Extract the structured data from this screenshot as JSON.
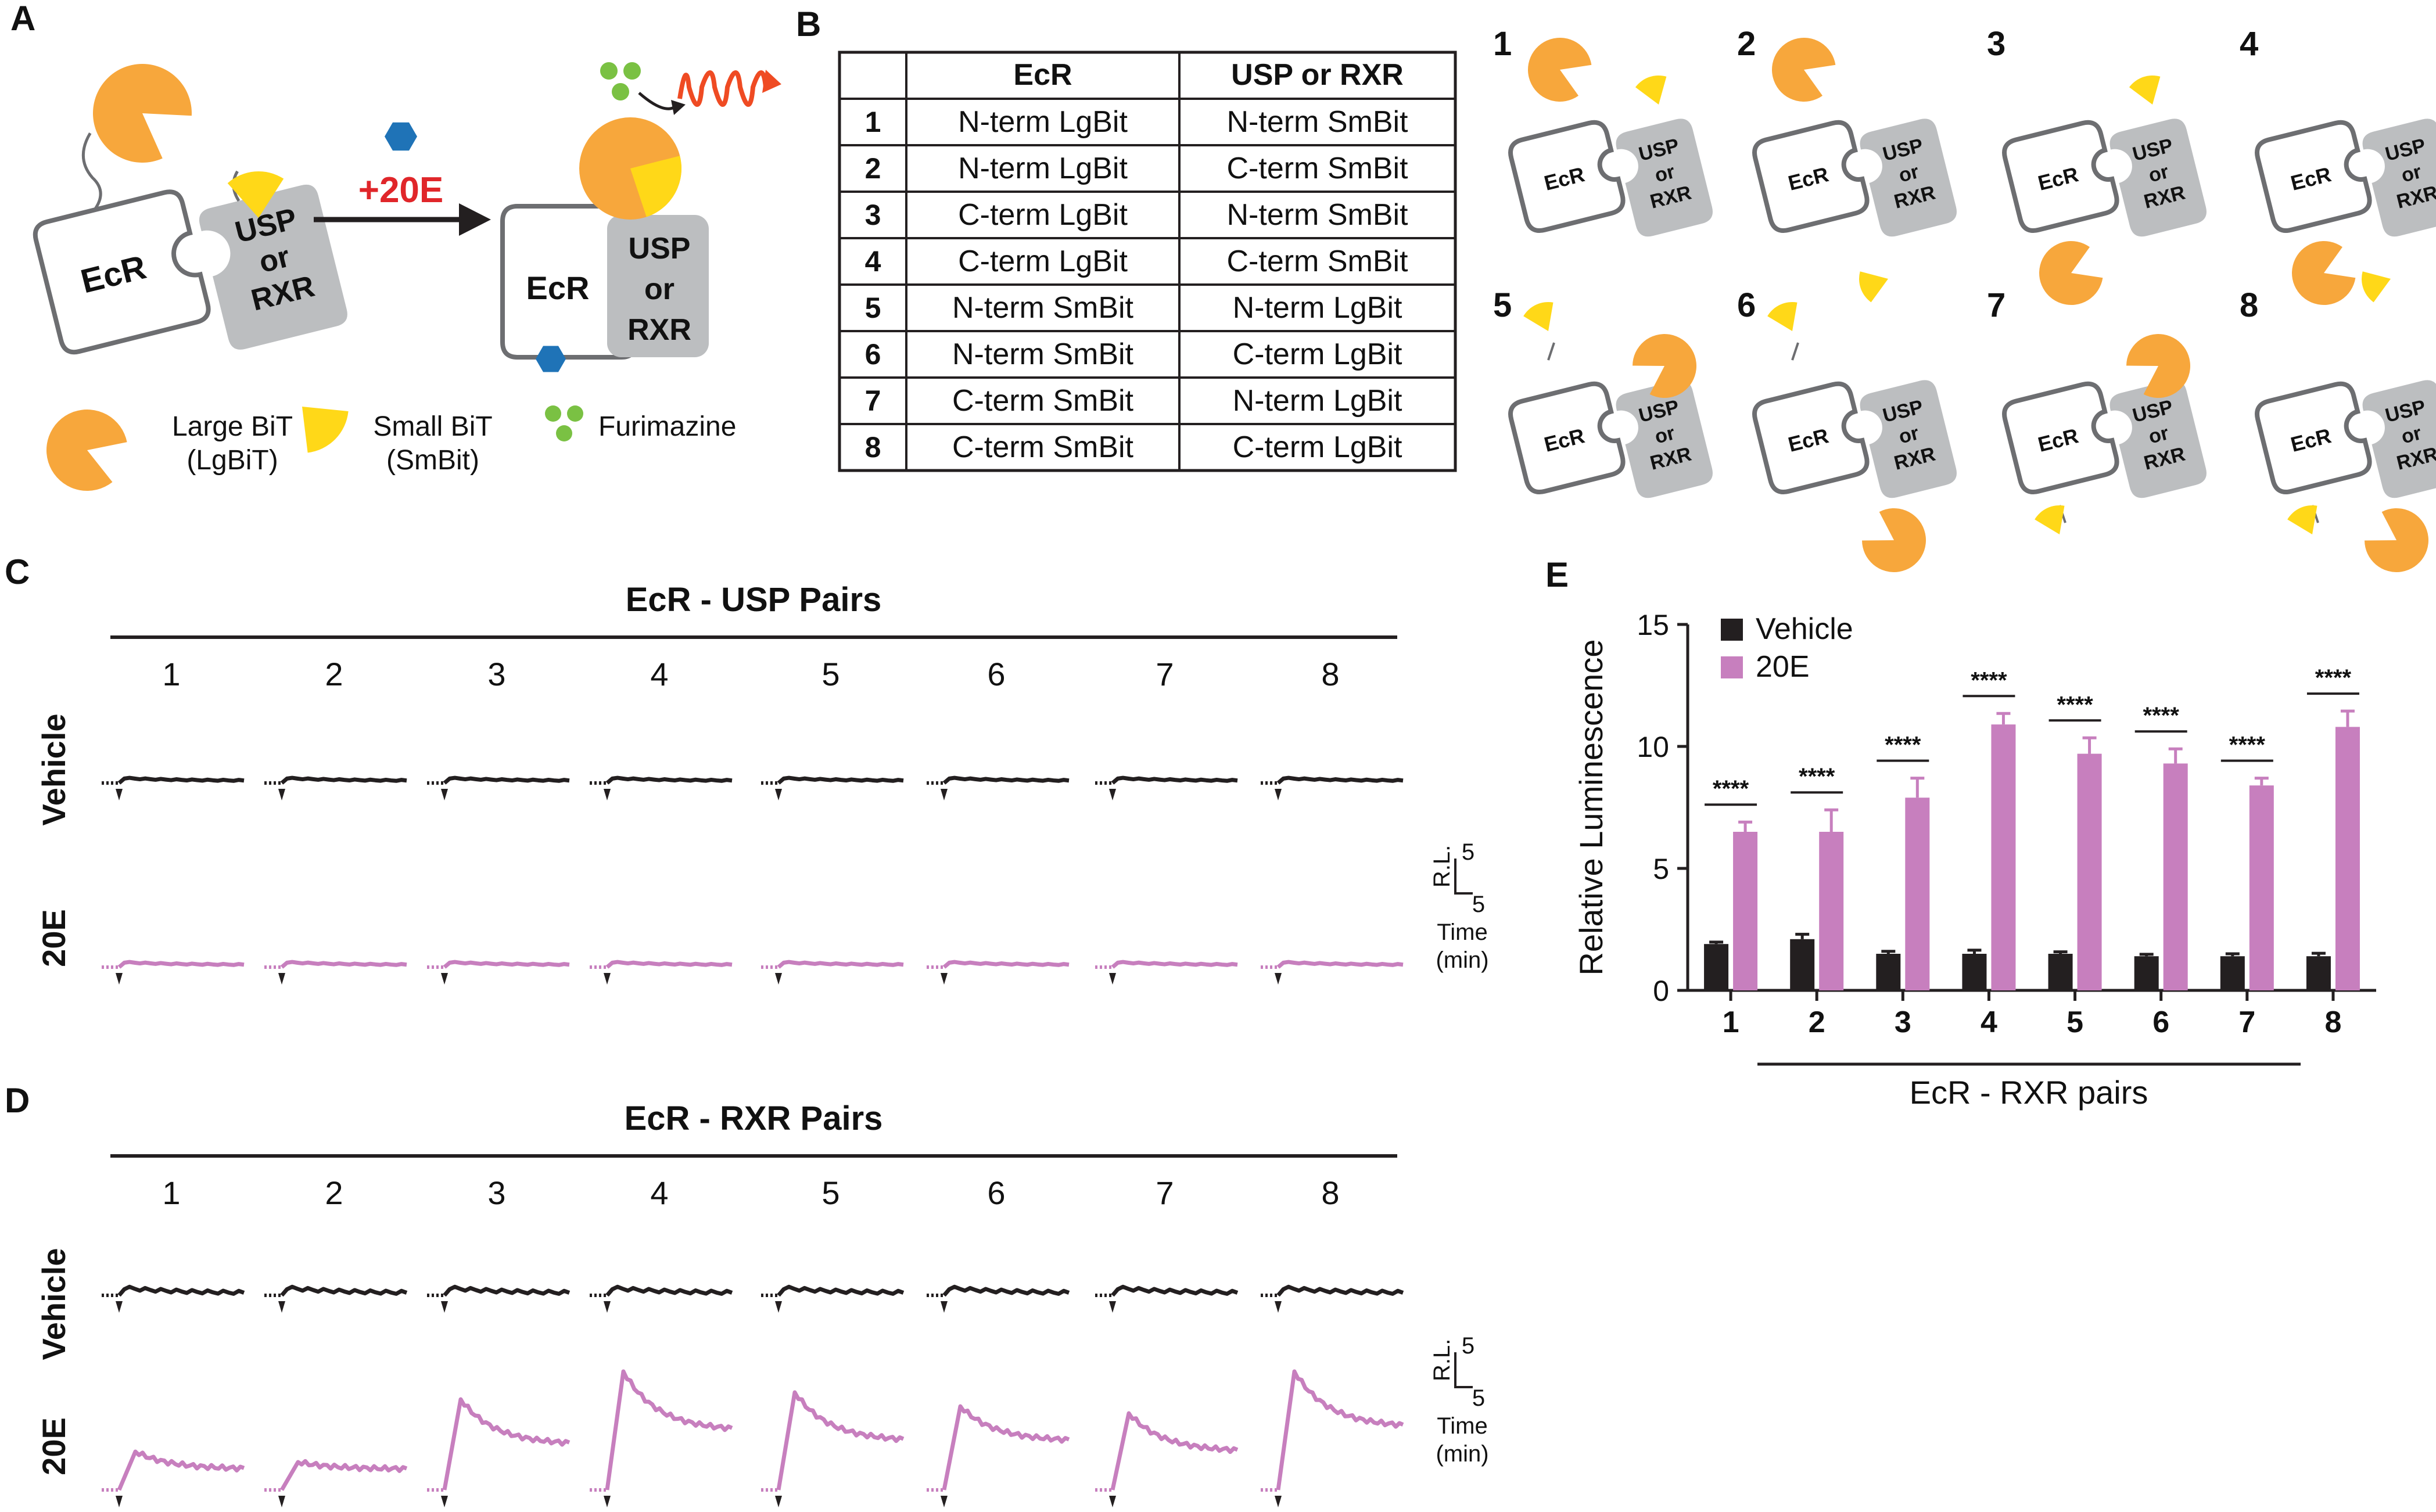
{
  "panels": {
    "A": "A",
    "B": "B",
    "C": "C",
    "D": "D",
    "E": "E"
  },
  "schematic": {
    "ecr": "EcR",
    "partner_line1": "USP",
    "partner_line2": "or",
    "partner_line3": "RXR",
    "ligand": "+20E",
    "legend": {
      "large_line1": "Large BiT",
      "large_line2": "(LgBiT)",
      "small_line1": "Small BiT",
      "small_line2": "(SmBit)",
      "furimazine": "Furimazine"
    }
  },
  "table": {
    "headers": [
      "",
      "EcR",
      "USP or RXR"
    ],
    "rows": [
      {
        "id": "1",
        "ecr": "N-term LgBit",
        "partner": "N-term SmBit"
      },
      {
        "id": "2",
        "ecr": "N-term LgBit",
        "partner": "C-term SmBit"
      },
      {
        "id": "3",
        "ecr": "C-term LgBit",
        "partner": "N-term SmBit"
      },
      {
        "id": "4",
        "ecr": "C-term LgBit",
        "partner": "C-term SmBit"
      },
      {
        "id": "5",
        "ecr": "N-term SmBit",
        "partner": "N-term LgBit"
      },
      {
        "id": "6",
        "ecr": "N-term SmBit",
        "partner": "C-term LgBit"
      },
      {
        "id": "7",
        "ecr": "C-term SmBit",
        "partner": "N-term LgBit"
      },
      {
        "id": "8",
        "ecr": "C-term SmBit",
        "partner": "C-term LgBit"
      }
    ]
  },
  "constructs": {
    "numbers": [
      "1",
      "2",
      "3",
      "4",
      "5",
      "6",
      "7",
      "8"
    ],
    "ecr": "EcR",
    "p1": "USP",
    "p2": "or",
    "p3": "RXR"
  },
  "traces": {
    "usp_title": "EcR - USP Pairs",
    "rxr_title": "EcR - RXR Pairs",
    "row_vehicle": "Vehicle",
    "row_20e": "20E",
    "pair_numbers": [
      "1",
      "2",
      "3",
      "4",
      "5",
      "6",
      "7",
      "8"
    ],
    "scale": {
      "y_label": "R.L.",
      "y_value": "5",
      "x_value": "5",
      "time_line1": "Time",
      "time_line2": "(min)"
    },
    "rxr_20e_peak_heights": [
      1.1,
      0.8,
      2.6,
      3.4,
      2.8,
      2.4,
      2.2,
      3.4
    ],
    "rxr_20e_final_heights": [
      0.6,
      0.6,
      1.3,
      1.7,
      1.4,
      1.4,
      1.1,
      1.8
    ]
  },
  "colors": {
    "vehicle": "#231f20",
    "e20": "#c77fbe",
    "lgbit": "#f7a73c",
    "smbit": "#ffd818",
    "ligand": "#1f73b7",
    "furimazine": "#7ac143",
    "light": "#ef4b23",
    "protein_fill": "#ffffff",
    "partner_fill": "#bcbec0",
    "outline": "#6d6e71"
  },
  "chart_data": {
    "type": "bar",
    "title": "",
    "xlabel": "EcR - RXR pairs",
    "ylabel": "Relative Luminescence",
    "categories": [
      "1",
      "2",
      "3",
      "4",
      "5",
      "6",
      "7",
      "8"
    ],
    "ylim": [
      0,
      15
    ],
    "yticks": [
      "0",
      "5",
      "10",
      "15"
    ],
    "series": [
      {
        "name": "Vehicle",
        "values": [
          1.9,
          2.1,
          1.5,
          1.5,
          1.5,
          1.4,
          1.4,
          1.4
        ],
        "errors": [
          0.08,
          0.2,
          0.1,
          0.15,
          0.08,
          0.08,
          0.1,
          0.12
        ]
      },
      {
        "name": "20E",
        "values": [
          6.5,
          6.5,
          7.9,
          10.9,
          9.7,
          9.3,
          8.4,
          10.8
        ],
        "errors": [
          0.4,
          0.9,
          0.8,
          0.45,
          0.65,
          0.6,
          0.3,
          0.65
        ]
      }
    ],
    "annotations": [
      "****",
      "****",
      "****",
      "****",
      "****",
      "****",
      "****",
      "****"
    ],
    "legend": "top-left"
  }
}
